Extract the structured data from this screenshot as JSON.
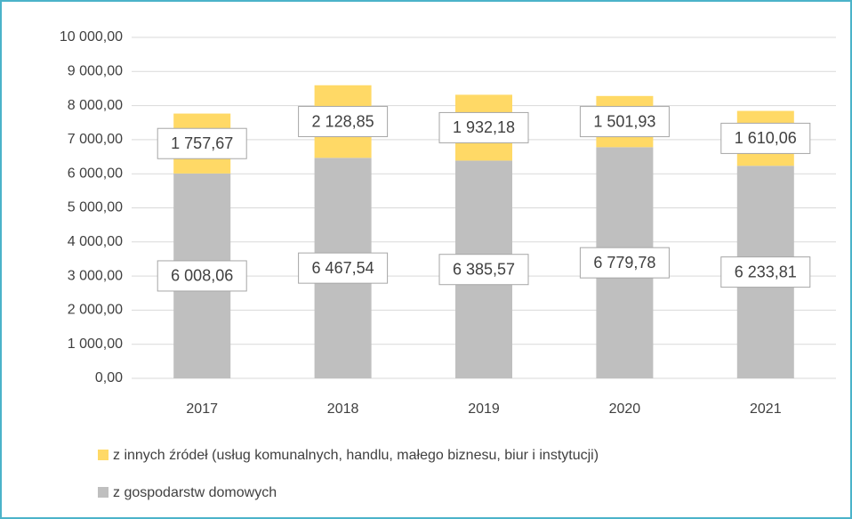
{
  "chart_data": {
    "type": "stacked_bar",
    "categories": [
      "2017",
      "2018",
      "2019",
      "2020",
      "2021"
    ],
    "series": [
      {
        "name": "z innych źródeł (usług komunalnych, handlu, małego biznesu, biur i instytucji)",
        "color": "#ffd966",
        "values": [
          1757.67,
          2128.85,
          1932.18,
          1501.93,
          1610.06
        ],
        "value_labels": [
          "1 757,67",
          "2 128,85",
          "1 932,18",
          "1 501,93",
          "1 610,06"
        ]
      },
      {
        "name": "z gospodarstw domowych",
        "color": "#bfbfbf",
        "values": [
          6008.06,
          6467.54,
          6385.57,
          6779.78,
          6233.81
        ],
        "value_labels": [
          "6 008,06",
          "6 467,54",
          "6 385,57",
          "6 779,78",
          "6 233,81"
        ]
      }
    ],
    "ylim": [
      0,
      10000
    ],
    "yticks": [
      {
        "value": 0,
        "label": "0,00"
      },
      {
        "value": 1000,
        "label": "1 000,00"
      },
      {
        "value": 2000,
        "label": "2 000,00"
      },
      {
        "value": 3000,
        "label": "3 000,00"
      },
      {
        "value": 4000,
        "label": "4 000,00"
      },
      {
        "value": 5000,
        "label": "5 000,00"
      },
      {
        "value": 6000,
        "label": "6 000,00"
      },
      {
        "value": 7000,
        "label": "7 000,00"
      },
      {
        "value": 8000,
        "label": "8 000,00"
      },
      {
        "value": 9000,
        "label": "9 000,00"
      },
      {
        "value": 10000,
        "label": "10 000,00"
      }
    ],
    "grid": true,
    "legend": "bottom"
  }
}
